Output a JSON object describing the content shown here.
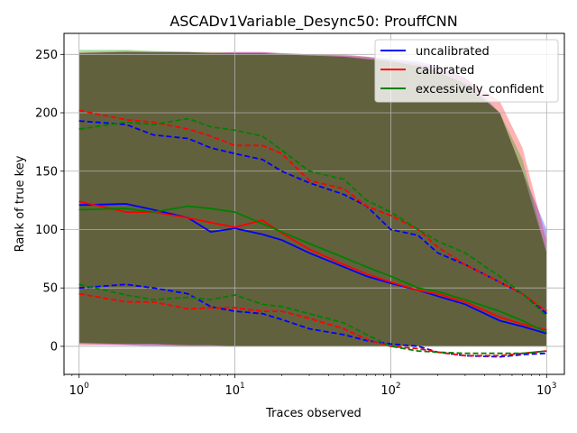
{
  "chart_data": {
    "type": "line",
    "title": "ASCADv1Variable_Desync50: ProuffCNN",
    "xlabel": "Traces observed",
    "ylabel": "Rank of true key",
    "xscale": "log",
    "xlim": [
      0.8,
      1300
    ],
    "ylim": [
      -24,
      268
    ],
    "x_ticks": [
      {
        "value": 1,
        "base": "10",
        "exp": "0"
      },
      {
        "value": 10,
        "base": "10",
        "exp": "1"
      },
      {
        "value": 100,
        "base": "10",
        "exp": "2"
      },
      {
        "value": 1000,
        "base": "10",
        "exp": "3"
      }
    ],
    "y_ticks": [
      0,
      50,
      100,
      150,
      200,
      250
    ],
    "grid": true,
    "legend_position": "top-right",
    "legend_entries": [
      "uncalibrated",
      "calibrated",
      "excessively_confident"
    ],
    "colors": {
      "uncalibrated": "#0000ff",
      "calibrated": "#ff0000",
      "excessively_confident": "#008000",
      "band_overlap": "#5a5a32"
    },
    "x": [
      1,
      2,
      3,
      5,
      7,
      10,
      15,
      20,
      30,
      50,
      70,
      100,
      150,
      200,
      300,
      500,
      700,
      1000
    ],
    "series": [
      {
        "name": "uncalibrated",
        "mean": [
          121,
          122,
          117,
          110,
          98,
          101,
          96,
          91,
          80,
          68,
          60,
          54,
          48,
          43,
          36,
          22,
          17,
          11
        ],
        "upper": [
          193,
          190,
          181,
          178,
          170,
          165,
          160,
          150,
          140,
          130,
          120,
          100,
          95,
          80,
          70,
          55,
          45,
          28
        ],
        "lower": [
          50,
          53,
          50,
          45,
          34,
          30,
          28,
          23,
          15,
          10,
          5,
          2,
          0,
          -5,
          -8,
          -9,
          -7,
          -6
        ],
        "band_upper": [
          251,
          252,
          252,
          252,
          251,
          252,
          252,
          251,
          250,
          249,
          248,
          246,
          244,
          240,
          230,
          200,
          150,
          100
        ],
        "band_lower": [
          2,
          1,
          0,
          0,
          0,
          0,
          0,
          0,
          0,
          0,
          0,
          0,
          0,
          0,
          0,
          0,
          0,
          0
        ]
      },
      {
        "name": "calibrated",
        "mean": [
          124,
          115,
          115,
          110,
          106,
          102,
          108,
          97,
          83,
          70,
          62,
          55,
          48,
          45,
          38,
          25,
          19,
          14
        ],
        "upper": [
          202,
          194,
          192,
          186,
          180,
          172,
          172,
          165,
          142,
          135,
          120,
          112,
          100,
          85,
          70,
          55,
          45,
          30
        ],
        "lower": [
          45,
          38,
          38,
          32,
          33,
          33,
          30,
          30,
          24,
          15,
          6,
          0,
          -2,
          -5,
          -8,
          -8,
          -6,
          -4
        ],
        "band_upper": [
          252,
          253,
          252,
          252,
          252,
          252,
          252,
          251,
          250,
          250,
          248,
          245,
          242,
          238,
          230,
          210,
          170,
          90
        ],
        "band_lower": [
          1,
          1,
          1,
          0,
          0,
          0,
          0,
          0,
          0,
          0,
          0,
          0,
          0,
          0,
          0,
          0,
          0,
          0
        ]
      },
      {
        "name": "excessively_confident",
        "mean": [
          117,
          118,
          115,
          120,
          118,
          115,
          105,
          98,
          88,
          76,
          68,
          60,
          50,
          47,
          40,
          30,
          22,
          12
        ],
        "upper": [
          186,
          192,
          190,
          195,
          188,
          185,
          180,
          168,
          150,
          143,
          125,
          115,
          100,
          90,
          80,
          60,
          45,
          26
        ],
        "lower": [
          53,
          44,
          40,
          42,
          40,
          44,
          36,
          34,
          28,
          20,
          10,
          0,
          -4,
          -5,
          -6,
          -6,
          -6,
          -4
        ],
        "band_upper": [
          254,
          254,
          253,
          252,
          252,
          251,
          251,
          250,
          249,
          248,
          246,
          244,
          240,
          235,
          225,
          200,
          160,
          80
        ],
        "band_lower": [
          3,
          2,
          2,
          1,
          1,
          0,
          0,
          0,
          0,
          0,
          0,
          0,
          0,
          0,
          0,
          0,
          0,
          0
        ]
      }
    ]
  }
}
